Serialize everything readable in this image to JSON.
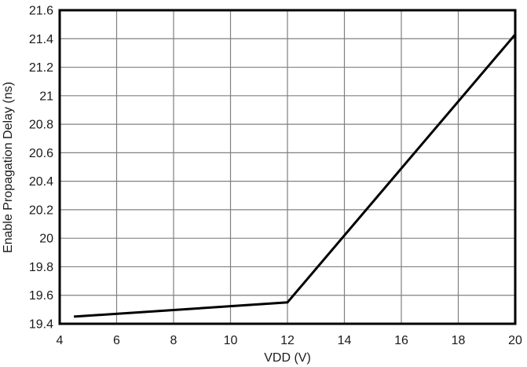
{
  "chart_data": {
    "type": "line",
    "title": "",
    "xlabel": "VDD (V)",
    "ylabel": "Enable Propagation Delay (ns)",
    "xlim": [
      4,
      20
    ],
    "ylim": [
      19.4,
      21.6
    ],
    "x_ticks": [
      4,
      6,
      8,
      10,
      12,
      14,
      16,
      18,
      20
    ],
    "y_ticks": [
      19.4,
      19.6,
      19.8,
      20,
      20.2,
      20.4,
      20.6,
      20.8,
      21,
      21.2,
      21.4,
      21.6
    ],
    "grid": true,
    "legend_position": "none",
    "series": [
      {
        "name": "Enable Propagation Delay",
        "x": [
          4.5,
          12,
          20
        ],
        "y": [
          19.45,
          19.55,
          21.43
        ]
      }
    ],
    "colors": {
      "line": "#000000",
      "grid": "#808080",
      "border": "#000000",
      "background": "#ffffff",
      "text": "#1a1a1a"
    }
  }
}
